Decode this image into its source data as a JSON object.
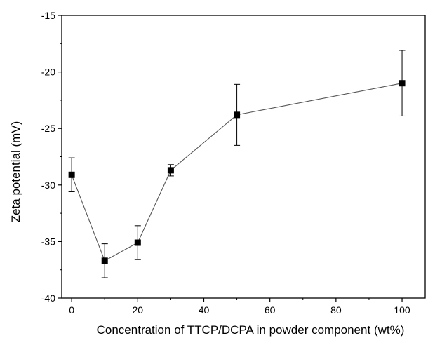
{
  "chart_data": {
    "type": "scatter",
    "title": "",
    "xlabel": "Concentration of TTCP/DCPA in powder component (wt%)",
    "ylabel": "Zeta potential (mV)",
    "xlim": [
      -3,
      107
    ],
    "ylim": [
      -40,
      -15
    ],
    "x_ticks": [
      0,
      20,
      40,
      60,
      80,
      100
    ],
    "y_ticks": [
      -40,
      -35,
      -30,
      -25,
      -20,
      -15
    ],
    "x_tick_labels": [
      "0",
      "20",
      "40",
      "60",
      "80",
      "100"
    ],
    "y_tick_labels": [
      "-40",
      "-35",
      "-30",
      "-25",
      "-20",
      "-15"
    ],
    "grid": false,
    "marker": "square",
    "connected": true,
    "line_color": "#555555",
    "marker_color": "#000000",
    "points": [
      {
        "x": 0,
        "y": -29.1,
        "err": 1.5
      },
      {
        "x": 10,
        "y": -36.7,
        "err": 1.5
      },
      {
        "x": 20,
        "y": -35.1,
        "err": 1.5
      },
      {
        "x": 30,
        "y": -28.7,
        "err": 0.5
      },
      {
        "x": 50,
        "y": -23.8,
        "err": 2.7
      },
      {
        "x": 100,
        "y": -21.0,
        "err": 2.9
      }
    ]
  }
}
